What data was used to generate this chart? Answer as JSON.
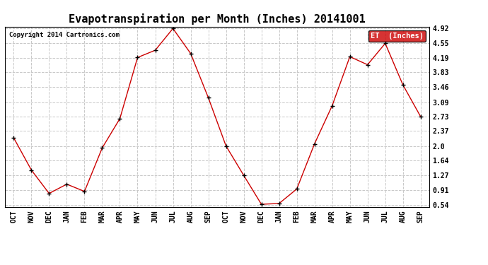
{
  "title": "Evapotranspiration per Month (Inches) 20141001",
  "copyright": "Copyright 2014 Cartronics.com",
  "x_labels": [
    "OCT",
    "NOV",
    "DEC",
    "JAN",
    "FEB",
    "MAR",
    "APR",
    "MAY",
    "JUN",
    "JUL",
    "AUG",
    "SEP",
    "OCT",
    "NOV",
    "DEC",
    "JAN",
    "FEB",
    "MAR",
    "APR",
    "MAY",
    "JUN",
    "JUL",
    "AUG",
    "SEP"
  ],
  "y_values": [
    2.2,
    1.4,
    0.82,
    1.05,
    0.87,
    1.95,
    2.68,
    4.2,
    4.38,
    4.92,
    4.3,
    3.2,
    2.0,
    1.27,
    0.55,
    0.57,
    0.93,
    2.05,
    3.0,
    4.22,
    4.02,
    4.55,
    3.52,
    2.73
  ],
  "yticks": [
    0.54,
    0.91,
    1.27,
    1.64,
    2.0,
    2.37,
    2.73,
    3.09,
    3.46,
    3.83,
    4.19,
    4.55,
    4.92
  ],
  "line_color": "#cc0000",
  "marker_color": "#000000",
  "background_color": "#ffffff",
  "plot_bg_color": "#ffffff",
  "grid_color": "#c8c8c8",
  "title_fontsize": 11,
  "copyright_fontsize": 7,
  "legend_label": "ET  (Inches)",
  "legend_bg": "#cc0000",
  "legend_text_color": "#ffffff",
  "ymin": 0.54,
  "ymax": 4.92
}
